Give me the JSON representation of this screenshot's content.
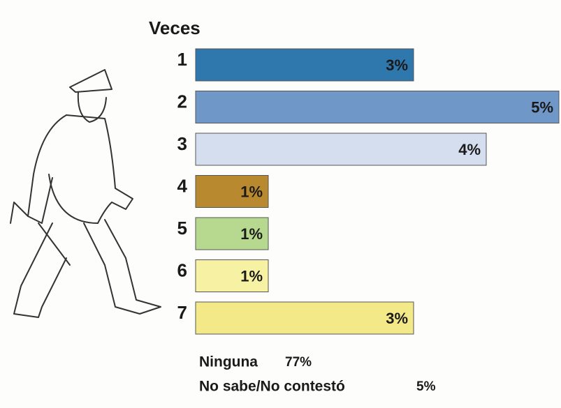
{
  "chart_data": {
    "type": "hbar",
    "title": "Veces",
    "categories": [
      "1",
      "2",
      "3",
      "4",
      "5",
      "6",
      "7"
    ],
    "values": [
      3,
      5,
      4,
      1,
      1,
      1,
      3
    ],
    "value_labels": [
      "3%",
      "5%",
      "4%",
      "1%",
      "1%",
      "1%",
      "3%"
    ],
    "colors": [
      "#2f78ad",
      "#6f97c8",
      "#d5deef",
      "#b8892f",
      "#b7d98f",
      "#f6f1a3",
      "#f4e989"
    ],
    "xlim": [
      0,
      5
    ],
    "annotations": [
      {
        "text": "Ninguna",
        "value_label": "77%"
      },
      {
        "text": "No sabe/No contestó",
        "value_label": "5%"
      }
    ]
  }
}
